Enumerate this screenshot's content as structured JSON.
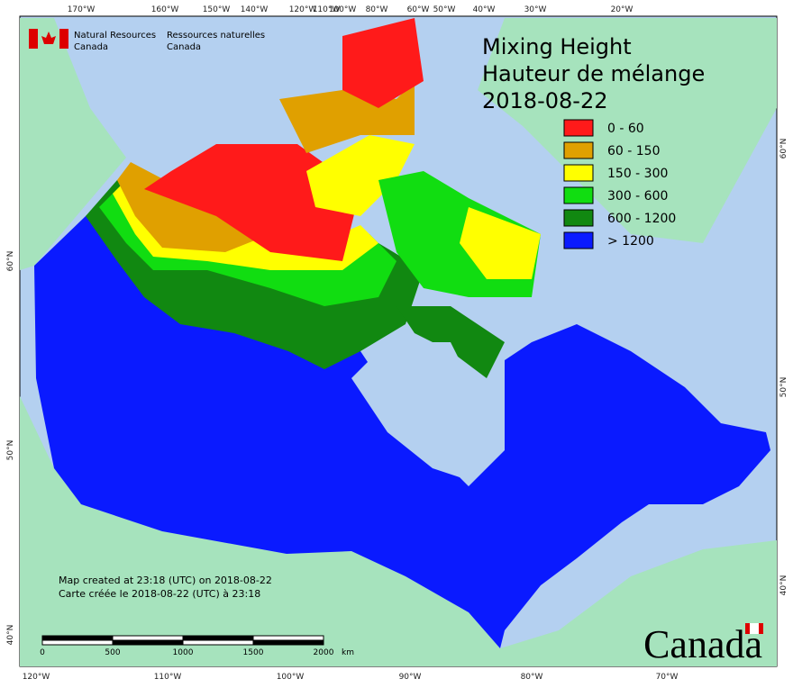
{
  "header": {
    "agency_en": [
      "Natural Resources",
      "Canada"
    ],
    "agency_fr": [
      "Ressources naturelles",
      "Canada"
    ]
  },
  "title": [
    "Mixing Height",
    "Hauteur de mélange",
    "2018-08-22"
  ],
  "legend": [
    {
      "label": "0 - 60",
      "color": "#ff1a1a"
    },
    {
      "label": "60 - 150",
      "color": "#e0a000"
    },
    {
      "label": "150 - 300",
      "color": "#ffff00"
    },
    {
      "label": "300 - 600",
      "color": "#11dd11"
    },
    {
      "label": "600 - 1200",
      "color": "#118811"
    },
    {
      "label": "> 1200",
      "color": "#0a1aff"
    }
  ],
  "lon_labels_top": [
    "170°W",
    "160°W",
    "150°W",
    "140°W",
    "120°W",
    "110°W",
    "100°W",
    "80°W",
    "60°W",
    "50°W",
    "40°W",
    "30°W",
    "20°W"
  ],
  "lon_labels_bottom": [
    "120°W",
    "110°W",
    "100°W",
    "90°W",
    "80°W",
    "70°W"
  ],
  "lat_labels_left": [
    "60°N",
    "50°N",
    "40°N"
  ],
  "lat_labels_right": [
    "60°N",
    "50°N",
    "40°N"
  ],
  "notes": [
    "Map created at 23:18 (UTC) on 2018-08-22",
    "Carte créée le 2018-08-22 (UTC) à 23:18"
  ],
  "scale": {
    "labels": [
      "0",
      "500",
      "1000",
      "1500",
      "2000"
    ],
    "unit": "km"
  },
  "wordmark": "Canada"
}
